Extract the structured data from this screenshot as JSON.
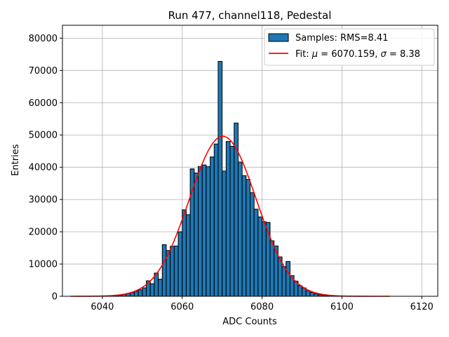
{
  "chart_data": {
    "type": "bar",
    "title": "Run 477, channel118, Pedestal",
    "xlabel": "ADC Counts",
    "ylabel": "Entries",
    "xlim": [
      6030,
      6124
    ],
    "ylim": [
      0,
      84000
    ],
    "xticks": [
      6040,
      6060,
      6080,
      6100,
      6120
    ],
    "yticks": [
      0,
      10000,
      20000,
      30000,
      40000,
      50000,
      60000,
      70000,
      80000
    ],
    "grid": true,
    "legend_position": "top-right",
    "histogram": {
      "name": "Samples: RMS=8.41",
      "color": "#1f77b4",
      "edgecolor": "#000000",
      "bin_width": 1,
      "bin_starts": [
        6043,
        6044,
        6045,
        6046,
        6047,
        6048,
        6049,
        6050,
        6051,
        6052,
        6053,
        6054,
        6055,
        6056,
        6057,
        6058,
        6059,
        6060,
        6061,
        6062,
        6063,
        6064,
        6065,
        6066,
        6067,
        6068,
        6069,
        6070,
        6071,
        6072,
        6073,
        6074,
        6075,
        6076,
        6077,
        6078,
        6079,
        6080,
        6081,
        6082,
        6083,
        6084,
        6085,
        6086,
        6087,
        6088,
        6089,
        6090,
        6091,
        6092,
        6093,
        6094,
        6095,
        6096,
        6097
      ],
      "counts": [
        200,
        300,
        600,
        900,
        1200,
        1600,
        2000,
        2600,
        4800,
        3900,
        7200,
        5300,
        16000,
        14200,
        15500,
        15600,
        20000,
        26800,
        25300,
        39500,
        38200,
        40200,
        40700,
        40200,
        43200,
        47200,
        72800,
        38800,
        48000,
        46500,
        53700,
        41600,
        37400,
        36200,
        32100,
        27000,
        24600,
        23100,
        22900,
        17200,
        15600,
        12200,
        9200,
        10800,
        6400,
        4700,
        3300,
        2600,
        1700,
        1200,
        800,
        500,
        300,
        200,
        100
      ]
    },
    "fit": {
      "name_prefix": "Fit: ",
      "mu_label": "μ",
      "mu_value": "6070.159",
      "sigma_label": "σ",
      "sigma_value": "8.38",
      "separator": ", ",
      "equals": " = ",
      "color": "#ff0000",
      "mu": 6070.159,
      "sigma": 8.38,
      "amplitude": 49600,
      "x_range": [
        6032,
        6112
      ]
    }
  }
}
